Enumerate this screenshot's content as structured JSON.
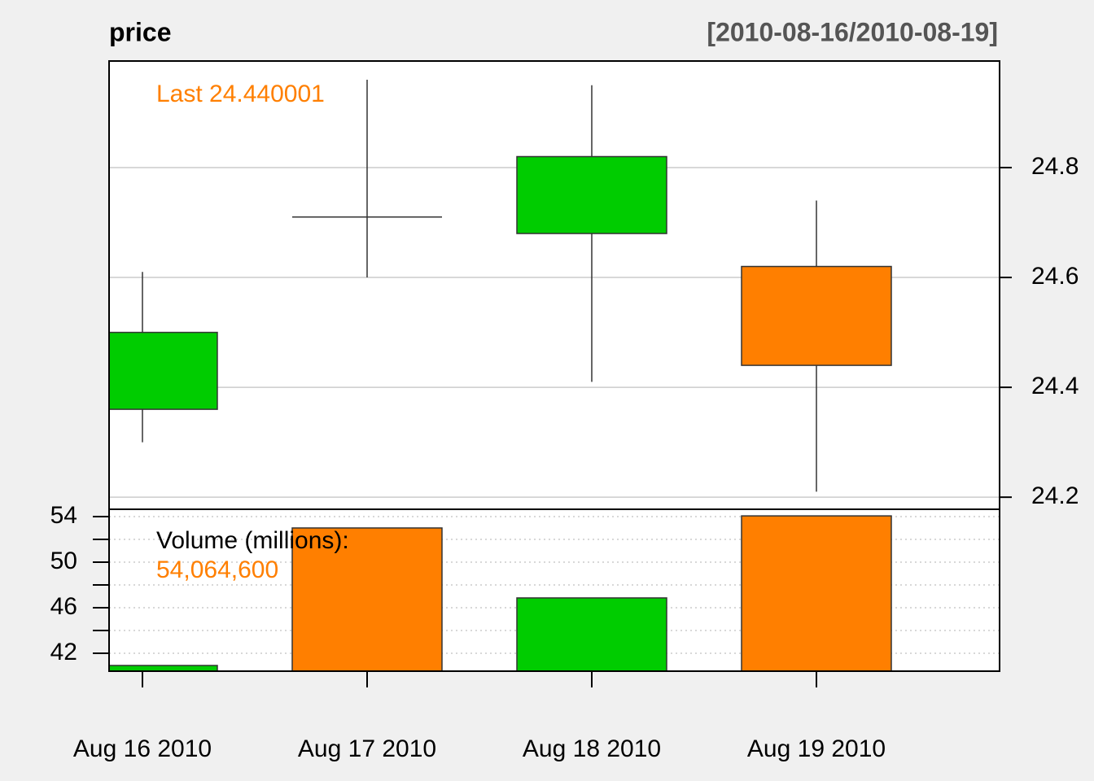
{
  "chart_data": {
    "type": "candlestick",
    "title": "price",
    "date_range": "[2010-08-16/2010-08-19]",
    "categories": [
      "Aug 16 2010",
      "Aug 17 2010",
      "Aug 18 2010",
      "Aug 19 2010"
    ],
    "open": [
      24.36,
      24.71,
      24.68,
      24.62
    ],
    "high": [
      24.61,
      24.96,
      24.95,
      24.74
    ],
    "low": [
      24.3,
      24.6,
      24.41,
      24.21
    ],
    "close": [
      24.5,
      24.71,
      24.82,
      24.44
    ],
    "up_color": "#00CC00",
    "down_color": "#FF7F00",
    "last_label": "Last 24.440001",
    "ylim": [
      24.178,
      24.994
    ],
    "yticks": [
      24.2,
      24.4,
      24.6,
      24.8
    ],
    "grid": true,
    "volume_title": "Volume (millions):",
    "volume_last_label": "54,064,600",
    "volume": [
      40.93,
      53.0,
      46.86,
      54.06
    ],
    "volume_ylim": [
      40.43,
      54.64
    ],
    "volume_yticks": [
      42,
      46,
      50,
      54
    ],
    "volume_minor_yticks": [
      44,
      48,
      52
    ]
  }
}
